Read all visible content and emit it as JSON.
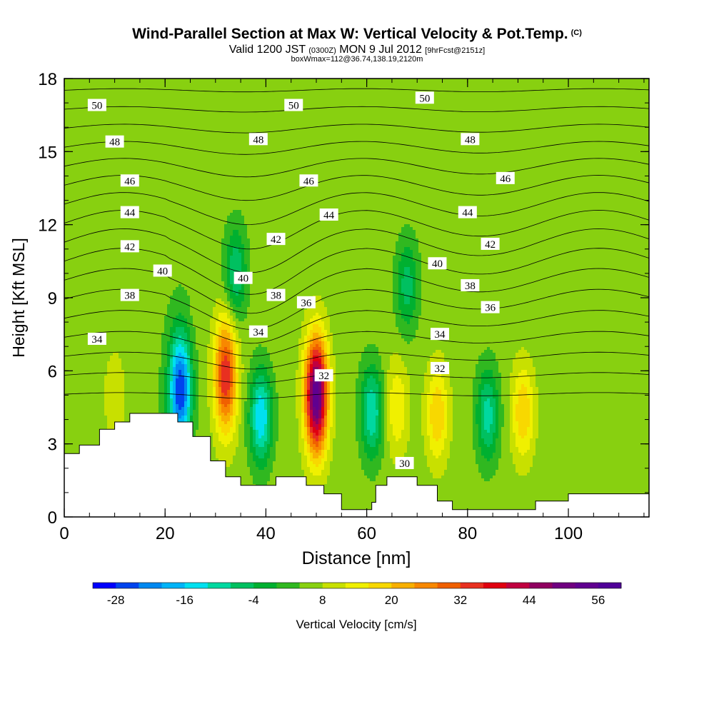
{
  "titles": {
    "main": "Wind-Parallel Section at Max W: Vertical Velocity & Pot.Temp.",
    "copyright": "(C)",
    "valid": "Valid 1200 JST",
    "utc": "(0300Z)",
    "date": "MON 9 Jul 2012",
    "forecast": "[9hrFcst@2151z]",
    "box": "boxWmax=112@36.74,138.19,2120m"
  },
  "chart_data": {
    "type": "heatmap",
    "title": "Wind-Parallel Section at Max W: Vertical Velocity & Pot.Temp.",
    "xlabel": "Distance [nm]",
    "ylabel": "Height [Kft MSL]",
    "xlim": [
      0,
      116
    ],
    "ylim": [
      0,
      18
    ],
    "x_ticks": [
      "0",
      "20",
      "40",
      "60",
      "80",
      "100"
    ],
    "y_ticks": [
      "0",
      "3",
      "6",
      "9",
      "12",
      "15",
      "18"
    ],
    "colorbar": {
      "label": "Vertical Velocity [cm/s]",
      "tick_labels": [
        "-28",
        "-16",
        "-4",
        "8",
        "20",
        "32",
        "44",
        "56"
      ],
      "min": -32,
      "max": 60,
      "step": 4,
      "colors": [
        "#0000ff",
        "#0044ee",
        "#0088f0",
        "#00b4f8",
        "#00e0f0",
        "#00d8a0",
        "#00c060",
        "#00b030",
        "#30b820",
        "#88d010",
        "#c8e000",
        "#f0f000",
        "#f8d800",
        "#f8b000",
        "#f88800",
        "#f06000",
        "#e83020",
        "#e00010",
        "#c00040",
        "#900060",
        "#700080",
        "#600090",
        "#500098"
      ]
    },
    "vertical_velocity_cells": [
      {
        "x": 23,
        "z": 5.2,
        "w": -28
      },
      {
        "x": 32,
        "z": 5.8,
        "w": 36
      },
      {
        "x": 39,
        "z": 4.1,
        "w": -16
      },
      {
        "x": 50,
        "z": 5.0,
        "w": 56
      },
      {
        "x": 61,
        "z": 4.3,
        "w": -12
      },
      {
        "x": 66,
        "z": 4.5,
        "w": 16
      },
      {
        "x": 74,
        "z": 4.2,
        "w": 20
      },
      {
        "x": 84,
        "z": 4.2,
        "w": -10
      },
      {
        "x": 91,
        "z": 4.3,
        "w": 20
      },
      {
        "x": 97,
        "z": 4.5,
        "w": 4
      },
      {
        "x": 10,
        "z": 5.0,
        "w": 12
      },
      {
        "x": 34,
        "z": 10.0,
        "w": -8
      },
      {
        "x": 56,
        "z": 8.0,
        "w": 4
      },
      {
        "x": 68,
        "z": 9.5,
        "w": -6
      }
    ],
    "theta_labels": [
      {
        "text": "50",
        "x": 6.5,
        "z": 16.9
      },
      {
        "text": "50",
        "x": 45.5,
        "z": 16.9
      },
      {
        "text": "50",
        "x": 71.5,
        "z": 17.2
      },
      {
        "text": "48",
        "x": 10,
        "z": 15.4
      },
      {
        "text": "48",
        "x": 38.5,
        "z": 15.5
      },
      {
        "text": "48",
        "x": 80.5,
        "z": 15.5
      },
      {
        "text": "46",
        "x": 13,
        "z": 13.8
      },
      {
        "text": "46",
        "x": 48.5,
        "z": 13.8
      },
      {
        "text": "46",
        "x": 87.5,
        "z": 13.9
      },
      {
        "text": "44",
        "x": 13,
        "z": 12.5
      },
      {
        "text": "44",
        "x": 52.5,
        "z": 12.4
      },
      {
        "text": "44",
        "x": 80,
        "z": 12.5
      },
      {
        "text": "42",
        "x": 13,
        "z": 11.1
      },
      {
        "text": "42",
        "x": 42,
        "z": 11.4
      },
      {
        "text": "42",
        "x": 84.5,
        "z": 11.2
      },
      {
        "text": "40",
        "x": 19.5,
        "z": 10.1
      },
      {
        "text": "40",
        "x": 35.5,
        "z": 9.8
      },
      {
        "text": "40",
        "x": 74,
        "z": 10.4
      },
      {
        "text": "38",
        "x": 13,
        "z": 9.1
      },
      {
        "text": "38",
        "x": 42,
        "z": 9.1
      },
      {
        "text": "38",
        "x": 80.5,
        "z": 9.5
      },
      {
        "text": "36",
        "x": 48,
        "z": 8.8
      },
      {
        "text": "36",
        "x": 84.5,
        "z": 8.6
      },
      {
        "text": "34",
        "x": 6.5,
        "z": 7.3
      },
      {
        "text": "34",
        "x": 38.5,
        "z": 7.6
      },
      {
        "text": "34",
        "x": 74.5,
        "z": 7.5
      },
      {
        "text": "32",
        "x": 51.5,
        "z": 5.8
      },
      {
        "text": "32",
        "x": 74.5,
        "z": 6.1
      },
      {
        "text": "30",
        "x": 67.5,
        "z": 2.2
      }
    ],
    "terrain": [
      [
        0,
        2.6
      ],
      [
        3,
        2.6
      ],
      [
        3,
        2.95
      ],
      [
        7,
        2.95
      ],
      [
        7,
        3.6
      ],
      [
        10,
        3.6
      ],
      [
        10,
        3.9
      ],
      [
        13,
        3.9
      ],
      [
        13,
        4.25
      ],
      [
        22.5,
        4.25
      ],
      [
        22.5,
        3.9
      ],
      [
        25.5,
        3.9
      ],
      [
        25.5,
        3.3
      ],
      [
        29,
        3.3
      ],
      [
        29,
        2.3
      ],
      [
        32,
        2.3
      ],
      [
        32,
        1.65
      ],
      [
        35,
        1.65
      ],
      [
        35,
        1.3
      ],
      [
        42,
        1.3
      ],
      [
        42,
        1.65
      ],
      [
        48,
        1.65
      ],
      [
        48,
        1.3
      ],
      [
        51.5,
        1.3
      ],
      [
        51.5,
        0.95
      ],
      [
        55,
        0.95
      ],
      [
        55,
        0.3
      ],
      [
        61,
        0.3
      ],
      [
        61,
        0.6
      ],
      [
        61.8,
        0.6
      ],
      [
        61.8,
        1.3
      ],
      [
        64,
        1.3
      ],
      [
        64,
        1.65
      ],
      [
        70,
        1.65
      ],
      [
        70,
        1.3
      ],
      [
        74,
        1.3
      ],
      [
        74,
        0.65
      ],
      [
        77,
        0.65
      ],
      [
        77,
        0.3
      ],
      [
        93.5,
        0.3
      ],
      [
        93.5,
        0.65
      ],
      [
        100,
        0.65
      ],
      [
        100,
        0.95
      ],
      [
        113,
        0.95
      ],
      [
        113,
        0.95
      ],
      [
        116,
        0.95
      ]
    ]
  }
}
